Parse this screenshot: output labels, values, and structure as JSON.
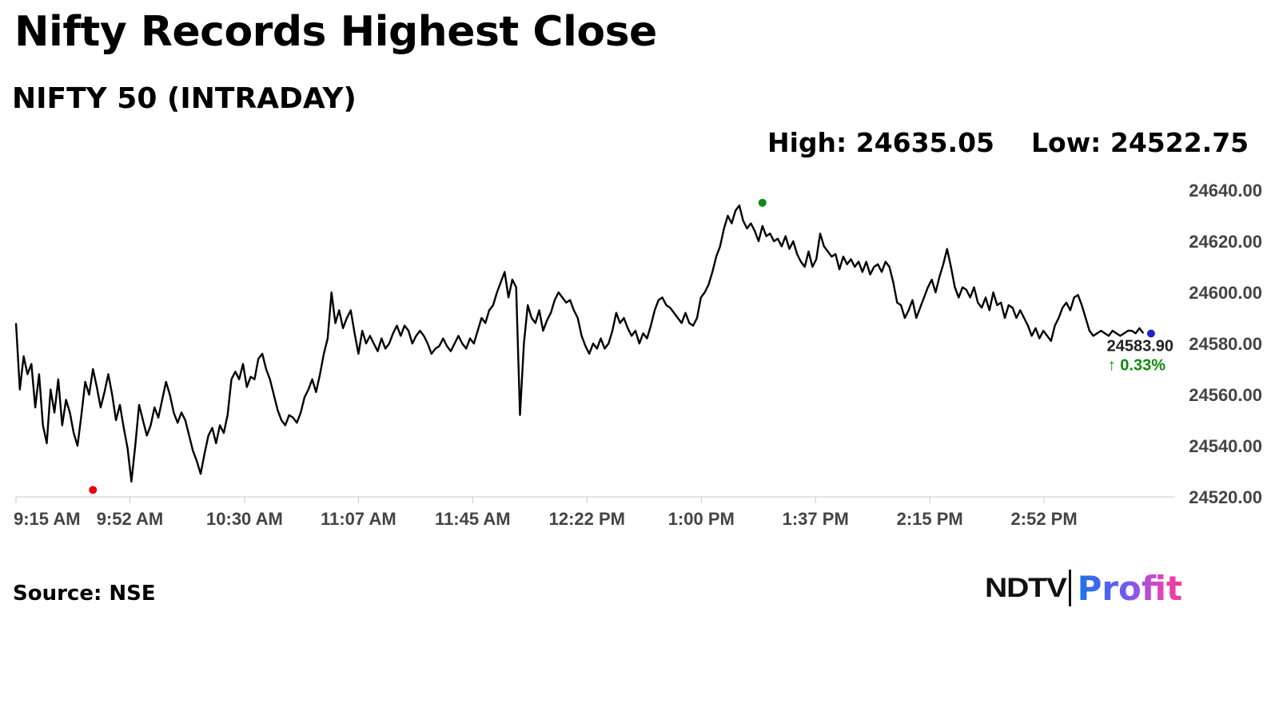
{
  "header": {
    "title": "Nifty Records Highest Close",
    "subtitle": "NIFTY 50 (INTRADAY)",
    "high_text": "High: 24635.05",
    "low_text": "Low: 24522.75"
  },
  "footer": {
    "source": "Source: NSE",
    "logo_left": "NDTV",
    "logo_right": "Profit"
  },
  "chart_data": {
    "type": "line",
    "series": [
      {
        "values": [
          [
            0,
            24588
          ],
          [
            1,
            24562
          ],
          [
            2,
            24575
          ],
          [
            3,
            24568
          ],
          [
            4,
            24572
          ],
          [
            5,
            24555
          ],
          [
            6,
            24568
          ],
          [
            7,
            24548
          ],
          [
            8,
            24541
          ],
          [
            9,
            24562
          ],
          [
            10,
            24553
          ],
          [
            11,
            24566
          ],
          [
            12,
            24548
          ],
          [
            13,
            24558
          ],
          [
            14,
            24553
          ],
          [
            15,
            24545
          ],
          [
            16,
            24540
          ],
          [
            17,
            24552
          ],
          [
            18,
            24565
          ],
          [
            19,
            24560
          ],
          [
            20,
            24570
          ],
          [
            21,
            24563
          ],
          [
            22,
            24555
          ],
          [
            23,
            24561
          ],
          [
            24,
            24568
          ],
          [
            25,
            24560
          ],
          [
            26,
            24550
          ],
          [
            27,
            24556
          ],
          [
            28,
            24547
          ],
          [
            29,
            24539
          ],
          [
            30,
            24526
          ],
          [
            31,
            24540
          ],
          [
            32,
            24556
          ],
          [
            33,
            24550
          ],
          [
            34,
            24544
          ],
          [
            35,
            24548
          ],
          [
            36,
            24555
          ],
          [
            37,
            24551
          ],
          [
            38,
            24558
          ],
          [
            39,
            24565
          ],
          [
            40,
            24560
          ],
          [
            41,
            24553
          ],
          [
            42,
            24549
          ],
          [
            43,
            24553
          ],
          [
            44,
            24550
          ],
          [
            45,
            24544
          ],
          [
            46,
            24538
          ],
          [
            47,
            24534
          ],
          [
            48,
            24529
          ],
          [
            49,
            24537
          ],
          [
            50,
            24544
          ],
          [
            51,
            24547
          ],
          [
            52,
            24541
          ],
          [
            53,
            24548
          ],
          [
            54,
            24545
          ],
          [
            55,
            24552
          ],
          [
            56,
            24566
          ],
          [
            57,
            24569
          ],
          [
            58,
            24566
          ],
          [
            59,
            24572
          ],
          [
            60,
            24563
          ],
          [
            61,
            24567
          ],
          [
            62,
            24566
          ],
          [
            63,
            24574
          ],
          [
            64,
            24576
          ],
          [
            65,
            24570
          ],
          [
            66,
            24566
          ],
          [
            67,
            24560
          ],
          [
            68,
            24554
          ],
          [
            69,
            24550
          ],
          [
            70,
            24548
          ],
          [
            71,
            24552
          ],
          [
            72,
            24551
          ],
          [
            73,
            24549
          ],
          [
            74,
            24553
          ],
          [
            75,
            24559
          ],
          [
            76,
            24562
          ],
          [
            77,
            24566
          ],
          [
            78,
            24561
          ],
          [
            79,
            24568
          ],
          [
            80,
            24576
          ],
          [
            81,
            24582
          ],
          [
            82,
            24600
          ],
          [
            83,
            24588
          ],
          [
            84,
            24593
          ],
          [
            85,
            24586
          ],
          [
            86,
            24590
          ],
          [
            87,
            24593
          ],
          [
            88,
            24584
          ],
          [
            89,
            24576
          ],
          [
            90,
            24585
          ],
          [
            91,
            24580
          ],
          [
            92,
            24583
          ],
          [
            93,
            24580
          ],
          [
            94,
            24577
          ],
          [
            95,
            24582
          ],
          [
            96,
            24578
          ],
          [
            97,
            24580
          ],
          [
            98,
            24584
          ],
          [
            99,
            24587
          ],
          [
            100,
            24583
          ],
          [
            101,
            24587
          ],
          [
            102,
            24585
          ],
          [
            103,
            24580
          ],
          [
            104,
            24583
          ],
          [
            105,
            24585
          ],
          [
            106,
            24583
          ],
          [
            107,
            24580
          ],
          [
            108,
            24576
          ],
          [
            109,
            24578
          ],
          [
            110,
            24579
          ],
          [
            111,
            24582
          ],
          [
            112,
            24579
          ],
          [
            113,
            24577
          ],
          [
            114,
            24580
          ],
          [
            115,
            24583
          ],
          [
            116,
            24580
          ],
          [
            117,
            24578
          ],
          [
            118,
            24582
          ],
          [
            119,
            24580
          ],
          [
            120,
            24585
          ],
          [
            121,
            24590
          ],
          [
            122,
            24588
          ],
          [
            123,
            24593
          ],
          [
            124,
            24595
          ],
          [
            125,
            24600
          ],
          [
            126,
            24604
          ],
          [
            127,
            24608
          ],
          [
            128,
            24598
          ],
          [
            129,
            24605
          ],
          [
            130,
            24602
          ],
          [
            131,
            24552
          ],
          [
            132,
            24580
          ],
          [
            133,
            24595
          ],
          [
            134,
            24590
          ],
          [
            135,
            24588
          ],
          [
            136,
            24593
          ],
          [
            137,
            24585
          ],
          [
            138,
            24589
          ],
          [
            139,
            24592
          ],
          [
            140,
            24597
          ],
          [
            141,
            24600
          ],
          [
            142,
            24598
          ],
          [
            143,
            24596
          ],
          [
            144,
            24597
          ],
          [
            145,
            24593
          ],
          [
            146,
            24590
          ],
          [
            147,
            24583
          ],
          [
            148,
            24579
          ],
          [
            149,
            24576
          ],
          [
            150,
            24580
          ],
          [
            151,
            24578
          ],
          [
            152,
            24582
          ],
          [
            153,
            24578
          ],
          [
            154,
            24580
          ],
          [
            155,
            24585
          ],
          [
            156,
            24592
          ],
          [
            157,
            24588
          ],
          [
            158,
            24590
          ],
          [
            159,
            24586
          ],
          [
            160,
            24583
          ],
          [
            161,
            24585
          ],
          [
            162,
            24580
          ],
          [
            163,
            24584
          ],
          [
            164,
            24582
          ],
          [
            165,
            24587
          ],
          [
            166,
            24593
          ],
          [
            167,
            24597
          ],
          [
            168,
            24598
          ],
          [
            169,
            24595
          ],
          [
            170,
            24594
          ],
          [
            171,
            24592
          ],
          [
            172,
            24590
          ],
          [
            173,
            24588
          ],
          [
            174,
            24592
          ],
          [
            175,
            24588
          ],
          [
            176,
            24587
          ],
          [
            177,
            24590
          ],
          [
            178,
            24598
          ],
          [
            179,
            24600
          ],
          [
            180,
            24603
          ],
          [
            181,
            24608
          ],
          [
            182,
            24614
          ],
          [
            183,
            24618
          ],
          [
            184,
            24625
          ],
          [
            185,
            24630
          ],
          [
            186,
            24627
          ],
          [
            187,
            24632
          ],
          [
            188,
            24634
          ],
          [
            189,
            24628
          ],
          [
            190,
            24625
          ],
          [
            191,
            24627
          ],
          [
            192,
            24624
          ],
          [
            193,
            24620
          ],
          [
            194,
            24626
          ],
          [
            195,
            24622
          ],
          [
            196,
            24623
          ],
          [
            197,
            24620
          ],
          [
            198,
            24621
          ],
          [
            199,
            24618
          ],
          [
            200,
            24622
          ],
          [
            201,
            24617
          ],
          [
            202,
            24620
          ],
          [
            203,
            24615
          ],
          [
            204,
            24612
          ],
          [
            205,
            24610
          ],
          [
            206,
            24616
          ],
          [
            207,
            24610
          ],
          [
            208,
            24613
          ],
          [
            209,
            24623
          ],
          [
            210,
            24618
          ],
          [
            211,
            24616
          ],
          [
            212,
            24614
          ],
          [
            213,
            24615
          ],
          [
            214,
            24609
          ],
          [
            215,
            24614
          ],
          [
            216,
            24611
          ],
          [
            217,
            24613
          ],
          [
            218,
            24610
          ],
          [
            219,
            24612
          ],
          [
            220,
            24608
          ],
          [
            221,
            24612
          ],
          [
            222,
            24607
          ],
          [
            223,
            24610
          ],
          [
            224,
            24611
          ],
          [
            225,
            24608
          ],
          [
            226,
            24612
          ],
          [
            227,
            24610
          ],
          [
            228,
            24604
          ],
          [
            229,
            24596
          ],
          [
            230,
            24595
          ],
          [
            231,
            24590
          ],
          [
            232,
            24593
          ],
          [
            233,
            24597
          ],
          [
            234,
            24590
          ],
          [
            235,
            24594
          ],
          [
            236,
            24598
          ],
          [
            237,
            24602
          ],
          [
            238,
            24605
          ],
          [
            239,
            24600
          ],
          [
            240,
            24606
          ],
          [
            241,
            24611
          ],
          [
            242,
            24617
          ],
          [
            243,
            24610
          ],
          [
            244,
            24602
          ],
          [
            245,
            24598
          ],
          [
            246,
            24602
          ],
          [
            247,
            24601
          ],
          [
            248,
            24598
          ],
          [
            249,
            24602
          ],
          [
            250,
            24596
          ],
          [
            251,
            24594
          ],
          [
            252,
            24598
          ],
          [
            253,
            24593
          ],
          [
            254,
            24600
          ],
          [
            255,
            24595
          ],
          [
            256,
            24596
          ],
          [
            257,
            24590
          ],
          [
            258,
            24595
          ],
          [
            259,
            24594
          ],
          [
            260,
            24590
          ],
          [
            261,
            24593
          ],
          [
            262,
            24590
          ],
          [
            263,
            24587
          ],
          [
            264,
            24583
          ],
          [
            265,
            24586
          ],
          [
            266,
            24582
          ],
          [
            267,
            24585
          ],
          [
            268,
            24583
          ],
          [
            269,
            24581
          ],
          [
            270,
            24587
          ],
          [
            271,
            24590
          ],
          [
            272,
            24594
          ],
          [
            273,
            24596
          ],
          [
            274,
            24593
          ],
          [
            275,
            24598
          ],
          [
            276,
            24599
          ],
          [
            277,
            24595
          ],
          [
            278,
            24590
          ],
          [
            279,
            24585
          ],
          [
            280,
            24583
          ],
          [
            281,
            24584
          ],
          [
            282,
            24585
          ],
          [
            283,
            24584
          ],
          [
            284,
            24583
          ],
          [
            285,
            24585
          ],
          [
            286,
            24584
          ],
          [
            287,
            24583
          ],
          [
            288,
            24584
          ],
          [
            289,
            24585
          ],
          [
            290,
            24585
          ],
          [
            291,
            24584
          ],
          [
            292,
            24586
          ],
          [
            293,
            24584
          ]
        ]
      }
    ],
    "x_axis": {
      "ticks": [
        "9:15 AM",
        "9:52 AM",
        "10:30 AM",
        "11:07 AM",
        "11:45 AM",
        "12:22 PM",
        "1:00 PM",
        "1:37 PM",
        "2:15 PM",
        "2:52 PM"
      ],
      "tick_index": [
        0,
        29.6,
        59.4,
        89,
        118.7,
        148.4,
        178.1,
        207.8,
        237.5,
        267.2
      ],
      "range": [
        0,
        300
      ]
    },
    "y_axis": {
      "ticks": [
        "24520.00",
        "24540.00",
        "24560.00",
        "24580.00",
        "24600.00",
        "24620.00",
        "24640.00"
      ],
      "ylim": [
        24520,
        24640
      ]
    },
    "markers": {
      "low": {
        "x": 20,
        "value": 24522.75,
        "color": "#e8000b"
      },
      "high": {
        "x": 194,
        "value": 24635.05,
        "color": "#118a11"
      },
      "last": {
        "x": 295,
        "value": 24583.9,
        "color": "#2222c8"
      }
    },
    "last_label": "24583.90",
    "change_label": "0.33%",
    "change_color": "#108a10",
    "line_color": "#000000",
    "grid": false
  }
}
